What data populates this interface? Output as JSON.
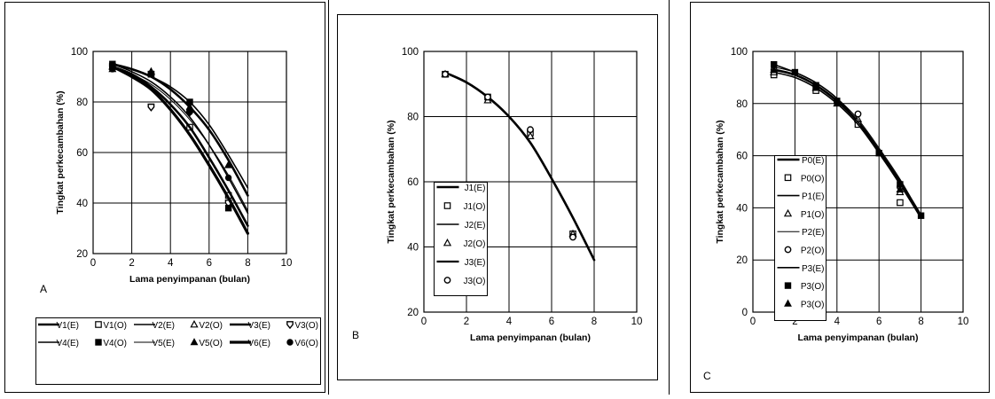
{
  "charts": [
    {
      "panel_label": "A",
      "chart_data": {
        "type": "line",
        "xlabel": "Lama penyimpanan (bulan)",
        "ylabel": "Tingkat perkecambahan (%)",
        "xlim": [
          0,
          10
        ],
        "ylim": [
          20,
          100
        ],
        "xticks": [
          0,
          2,
          4,
          6,
          8,
          10
        ],
        "yticks": [
          20,
          40,
          60,
          80,
          100
        ],
        "grid": true,
        "legend_position": "bottom",
        "series": [
          {
            "name": "V1(E)",
            "kind": "line",
            "weight": 2.6,
            "x": [
              1,
              2,
              3,
              4,
              5,
              6,
              7,
              8
            ],
            "y": [
              95,
              93,
              90,
              85,
              78,
              69,
              57,
              43
            ]
          },
          {
            "name": "V1(O)",
            "kind": "marker",
            "marker": "square-open",
            "x": [
              1,
              3,
              5,
              7
            ],
            "y": [
              94,
              91,
              70,
              43
            ]
          },
          {
            "name": "V2(E)",
            "kind": "line",
            "weight": 1.6,
            "x": [
              1,
              2,
              3,
              4,
              5,
              6,
              7,
              8
            ],
            "y": [
              95,
              93,
              90,
              86,
              80,
              71,
              59,
              46
            ]
          },
          {
            "name": "V2(O)",
            "kind": "marker",
            "marker": "triangle-open",
            "x": [
              1,
              3,
              5,
              7
            ],
            "y": [
              94,
              92,
              77,
              55
            ]
          },
          {
            "name": "V3(E)",
            "kind": "line",
            "weight": 2.6,
            "x": [
              1,
              2,
              3,
              4,
              5,
              6,
              7,
              8
            ],
            "y": [
              94,
              91,
              86,
              79,
              70,
              58,
              45,
              31
            ]
          },
          {
            "name": "V3(O)",
            "kind": "marker",
            "marker": "shield",
            "x": [
              1,
              3,
              5,
              7
            ],
            "y": [
              94,
              78,
              76,
              40
            ]
          },
          {
            "name": "V4(E)",
            "kind": "line",
            "weight": 1.6,
            "x": [
              1,
              2,
              3,
              4,
              5,
              6,
              7,
              8
            ],
            "y": [
              95,
              92,
              88,
              82,
              74,
              63,
              50,
              36
            ]
          },
          {
            "name": "V4(O)",
            "kind": "marker",
            "marker": "square-filled",
            "x": [
              1,
              3,
              5,
              7
            ],
            "y": [
              95,
              91,
              80,
              38
            ]
          },
          {
            "name": "V5(E)",
            "kind": "line",
            "weight": 1.0,
            "x": [
              1,
              2,
              3,
              4,
              5,
              6,
              7,
              8
            ],
            "y": [
              94,
              91,
              87,
              81,
              73,
              63,
              51,
              37
            ]
          },
          {
            "name": "V5(O)",
            "kind": "marker",
            "marker": "triangle-filled",
            "x": [
              1,
              3,
              5,
              7
            ],
            "y": [
              93,
              92,
              78,
              55
            ]
          },
          {
            "name": "V6(E)",
            "kind": "line",
            "weight": 3.2,
            "x": [
              1,
              2,
              3,
              4,
              5,
              6,
              7,
              8
            ],
            "y": [
              94,
              90,
              85,
              77,
              67,
              55,
              42,
              28
            ]
          },
          {
            "name": "V6(O)",
            "kind": "marker",
            "marker": "circle-filled",
            "x": [
              1,
              3,
              5,
              7
            ],
            "y": [
              93,
              91,
              76,
              50
            ]
          }
        ]
      }
    },
    {
      "panel_label": "B",
      "chart_data": {
        "type": "line",
        "xlabel": "Lama penyimpanan (bulan)",
        "ylabel": "Tingkat perkecambahan (%)",
        "xlim": [
          0,
          10
        ],
        "ylim": [
          20,
          100
        ],
        "xticks": [
          0,
          2,
          4,
          6,
          8,
          10
        ],
        "yticks": [
          20,
          40,
          60,
          80,
          100
        ],
        "grid": true,
        "legend_position": "left",
        "series": [
          {
            "name": "J1(E)",
            "kind": "line",
            "weight": 2.6,
            "x": [
              1,
              2,
              3,
              4,
              5,
              6,
              7,
              8
            ],
            "y": [
              93.5,
              90.5,
              86,
              80,
              72,
              61,
              49,
              36
            ]
          },
          {
            "name": "J1(O)",
            "kind": "marker",
            "marker": "square-open",
            "x": [
              1,
              3,
              5,
              7
            ],
            "y": [
              93,
              86,
              75,
              44
            ]
          },
          {
            "name": "J2(E)",
            "kind": "line",
            "weight": 1.6,
            "x": [
              1,
              2,
              3,
              4,
              5,
              6,
              7,
              8
            ],
            "y": [
              93.5,
              90.5,
              86,
              80,
              72,
              61,
              49,
              36
            ]
          },
          {
            "name": "J2(O)",
            "kind": "marker",
            "marker": "triangle-open",
            "x": [
              1,
              3,
              5,
              7
            ],
            "y": [
              93,
              85,
              74,
              44
            ]
          },
          {
            "name": "J3(E)",
            "kind": "line",
            "weight": 2.2,
            "x": [
              1,
              2,
              3,
              4,
              5,
              6,
              7,
              8
            ],
            "y": [
              93.5,
              90.5,
              86,
              80,
              72,
              61,
              49,
              36
            ]
          },
          {
            "name": "J3(O)",
            "kind": "marker",
            "marker": "circle-open",
            "x": [
              1,
              3,
              5,
              7
            ],
            "y": [
              93,
              86,
              76,
              43
            ]
          }
        ]
      }
    },
    {
      "panel_label": "C",
      "chart_data": {
        "type": "line",
        "xlabel": "Lama penyimpanan (bulan)",
        "ylabel": "Tingkat perkecambahan (%)",
        "xlim": [
          0,
          10
        ],
        "ylim": [
          0,
          100
        ],
        "xticks": [
          0,
          2,
          4,
          6,
          8,
          10
        ],
        "yticks": [
          0,
          20,
          40,
          60,
          80,
          100
        ],
        "grid": true,
        "legend_position": "left",
        "series": [
          {
            "name": "P0(E)",
            "kind": "line",
            "weight": 2.6,
            "x": [
              1,
              2,
              3,
              4,
              5,
              6,
              7,
              8
            ],
            "y": [
              93,
              91,
              87,
              81,
              73,
              62,
              50,
              37
            ]
          },
          {
            "name": "P0(O)",
            "kind": "marker",
            "marker": "square-open",
            "x": [
              1,
              3,
              5,
              7
            ],
            "y": [
              91,
              85,
              72,
              42
            ]
          },
          {
            "name": "P1(E)",
            "kind": "line",
            "weight": 1.6,
            "x": [
              1,
              2,
              3,
              4,
              5,
              6,
              7,
              8
            ],
            "y": [
              92,
              90,
              86,
              80,
              72,
              61,
              49,
              36
            ]
          },
          {
            "name": "P1(O)",
            "kind": "marker",
            "marker": "triangle-open",
            "x": [
              1,
              3,
              5,
              7
            ],
            "y": [
              92,
              86,
              74,
              46
            ]
          },
          {
            "name": "P2(E)",
            "kind": "line",
            "weight": 1.0,
            "x": [
              1,
              2,
              3,
              4,
              5,
              6,
              7,
              8
            ],
            "y": [
              94,
              92,
              88,
              82,
              74,
              63,
              51,
              37
            ]
          },
          {
            "name": "P2(O)",
            "kind": "marker",
            "marker": "circle-open",
            "x": [
              1,
              3,
              5,
              7
            ],
            "y": [
              93,
              87,
              76,
              48
            ]
          },
          {
            "name": "P3(E)",
            "kind": "line",
            "weight": 1.6,
            "x": [
              1,
              2,
              3,
              4,
              5,
              6,
              7,
              8
            ],
            "y": [
              95,
              92,
              88,
              82,
              73,
              62,
              50,
              36
            ]
          },
          {
            "name": "P3(O)",
            "kind": "marker",
            "marker": "square-filled",
            "x": [
              1,
              2,
              3,
              4,
              6,
              7,
              8
            ],
            "y": [
              95,
              92,
              87,
              81,
              61,
              49,
              37
            ]
          },
          {
            "name": "P3(O)",
            "kind": "marker",
            "marker": "triangle-filled",
            "x": [
              1,
              3,
              4,
              7
            ],
            "y": [
              93,
              86,
              80,
              47
            ]
          }
        ]
      }
    }
  ]
}
